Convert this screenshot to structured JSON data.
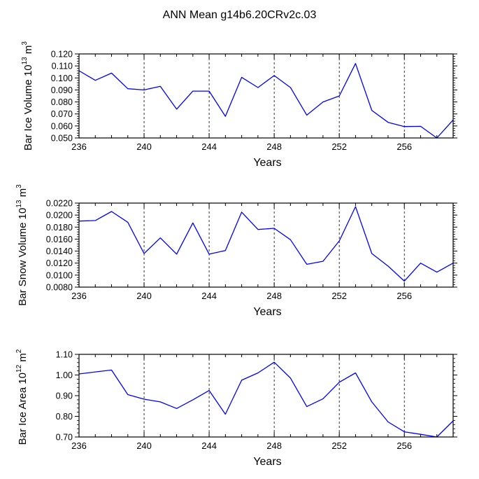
{
  "title": "ANN Mean g14b6.20CRv2c.03",
  "colors": {
    "line": "#0000ff",
    "grid": "#000000",
    "axis": "#000000"
  },
  "chart_data": [
    {
      "type": "line",
      "xlabel": "Years",
      "ylabel_prefix": "Bar Ice Volume 10",
      "ylabel_exp": "13",
      "ylabel_unit": "m",
      "ylabel_unit_exp": "3",
      "xlim": [
        236,
        259
      ],
      "ylim": [
        0.05,
        0.12
      ],
      "x_ticks": [
        "236",
        "240",
        "244",
        "248",
        "252",
        "256"
      ],
      "y_ticks": [
        "0.050",
        "0.060",
        "0.070",
        "0.080",
        "0.090",
        "0.100",
        "0.110",
        "0.120"
      ],
      "grid_x": [
        240,
        244,
        248,
        252,
        256
      ],
      "x": [
        236,
        237,
        238,
        239,
        240,
        241,
        242,
        243,
        244,
        245,
        246,
        247,
        248,
        249,
        250,
        251,
        252,
        253,
        254,
        255,
        256,
        257,
        258,
        259
      ],
      "y": [
        0.106,
        0.098,
        0.104,
        0.091,
        0.09,
        0.093,
        0.074,
        0.089,
        0.089,
        0.068,
        0.1005,
        0.092,
        0.102,
        0.092,
        0.069,
        0.08,
        0.085,
        0.112,
        0.073,
        0.063,
        0.0595,
        0.0597,
        0.05,
        0.065
      ]
    },
    {
      "type": "line",
      "xlabel": "Years",
      "ylabel_prefix": "Bar Snow Volume 10",
      "ylabel_exp": "13",
      "ylabel_unit": "m",
      "ylabel_unit_exp": "3",
      "xlim": [
        236,
        259
      ],
      "ylim": [
        0.008,
        0.022
      ],
      "x_ticks": [
        "236",
        "240",
        "244",
        "248",
        "252",
        "256"
      ],
      "y_ticks": [
        "0.0080",
        "0.0100",
        "0.0120",
        "0.0140",
        "0.0160",
        "0.0180",
        "0.0200",
        "0.0220"
      ],
      "grid_x": [
        240,
        244,
        248,
        252,
        256
      ],
      "x": [
        236,
        237,
        238,
        239,
        240,
        241,
        242,
        243,
        244,
        245,
        246,
        247,
        248,
        249,
        250,
        251,
        252,
        253,
        254,
        255,
        256,
        257,
        258,
        259
      ],
      "y": [
        0.019,
        0.0191,
        0.0206,
        0.0188,
        0.0136,
        0.0162,
        0.0135,
        0.0187,
        0.0135,
        0.0141,
        0.0205,
        0.0176,
        0.0178,
        0.0159,
        0.0118,
        0.0123,
        0.0157,
        0.0214,
        0.0136,
        0.0115,
        0.009,
        0.012,
        0.0105,
        0.012
      ]
    },
    {
      "type": "line",
      "xlabel": "Years",
      "ylabel_prefix": "Bar Ice Area 10",
      "ylabel_exp": "12",
      "ylabel_unit": "m",
      "ylabel_unit_exp": "2",
      "xlim": [
        236,
        259
      ],
      "ylim": [
        0.7,
        1.1
      ],
      "x_ticks": [
        "236",
        "240",
        "244",
        "248",
        "252",
        "256"
      ],
      "y_ticks": [
        "0.70",
        "0.80",
        "0.90",
        "1.00",
        "1.10"
      ],
      "grid_x": [
        240,
        244,
        248,
        252,
        256
      ],
      "x": [
        236,
        237,
        238,
        239,
        240,
        241,
        242,
        243,
        244,
        245,
        246,
        247,
        248,
        249,
        250,
        251,
        252,
        253,
        254,
        255,
        256,
        257,
        258,
        259
      ],
      "y": [
        1.005,
        1.015,
        1.024,
        0.905,
        0.883,
        0.87,
        0.838,
        0.88,
        0.925,
        0.81,
        0.975,
        1.01,
        1.062,
        0.985,
        0.847,
        0.885,
        0.965,
        1.01,
        0.87,
        0.773,
        0.725,
        0.713,
        0.7,
        0.778
      ]
    }
  ]
}
